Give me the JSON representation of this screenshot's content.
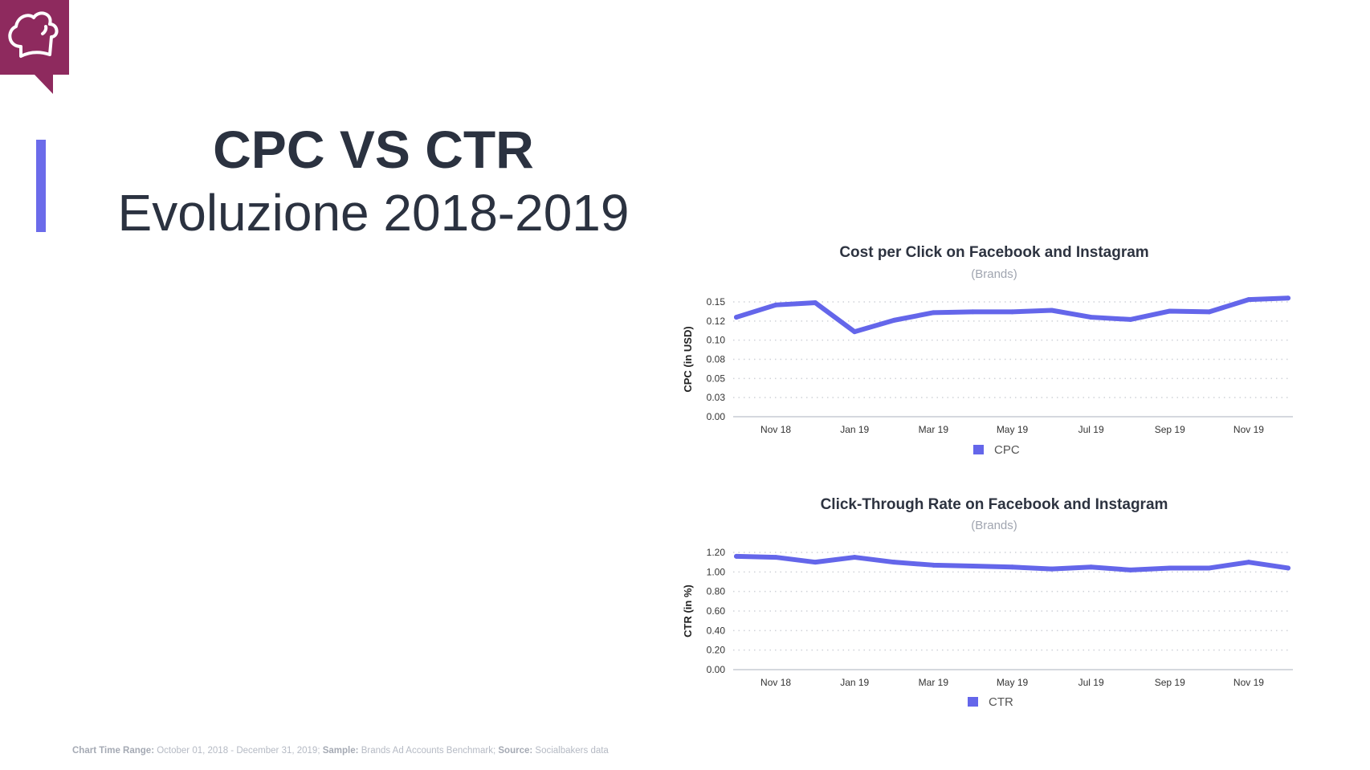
{
  "header": {
    "title": "CPC VS CTR",
    "subtitle": "Evoluzione 2018-2019"
  },
  "logo": {
    "icon": "chef-hat-icon",
    "color": "#8e2a5e"
  },
  "accent_color": "#6b6bea",
  "footer": {
    "range_label": "Chart Time Range:",
    "range_value": "October  01, 2018 - December 31, 2019;",
    "sample_label": "Sample:",
    "sample_value": "Brands Ad Accounts Benchmark;",
    "source_label": "Source:",
    "source_value": "Socialbakers data"
  },
  "chart_data": [
    {
      "type": "line",
      "title": "Cost per Click on Facebook and Instagram",
      "subtitle": "(Brands)",
      "ylabel": "CPC (in USD)",
      "ylim": [
        0,
        0.15
      ],
      "yticks": [
        0,
        0.025,
        0.05,
        0.075,
        0.1,
        0.125,
        0.15
      ],
      "ytick_labels": [
        "0.00",
        "0.03",
        "0.05",
        "0.08",
        "0.10",
        "0.12",
        "0.15"
      ],
      "x": [
        "Oct 18",
        "Nov 18",
        "Dec 18",
        "Jan 19",
        "Feb 19",
        "Mar 19",
        "Apr 19",
        "May 19",
        "Jun 19",
        "Jul 19",
        "Aug 19",
        "Sep 19",
        "Oct 19",
        "Nov 19",
        "Dec 19"
      ],
      "xtick_labels": [
        "Nov 18",
        "Jan 19",
        "Mar 19",
        "May 19",
        "Jul 19",
        "Sep 19",
        "Nov 19"
      ],
      "grid": true,
      "legend": "bottom",
      "series": [
        {
          "name": "CPC",
          "color": "#6466ea",
          "values": [
            0.13,
            0.146,
            0.149,
            0.111,
            0.126,
            0.136,
            0.137,
            0.137,
            0.139,
            0.13,
            0.127,
            0.138,
            0.137,
            0.153,
            0.155
          ]
        }
      ]
    },
    {
      "type": "line",
      "title": "Click-Through Rate on Facebook and Instagram",
      "subtitle": "(Brands)",
      "ylabel": "CTR (in %)",
      "ylim": [
        0,
        1.2
      ],
      "yticks": [
        0,
        0.2,
        0.4,
        0.6,
        0.8,
        1.0,
        1.2
      ],
      "ytick_labels": [
        "0.00",
        "0.20",
        "0.40",
        "0.60",
        "0.80",
        "1.00",
        "1.20"
      ],
      "x": [
        "Oct 18",
        "Nov 18",
        "Dec 18",
        "Jan 19",
        "Feb 19",
        "Mar 19",
        "Apr 19",
        "May 19",
        "Jun 19",
        "Jul 19",
        "Aug 19",
        "Sep 19",
        "Oct 19",
        "Nov 19",
        "Dec 19"
      ],
      "xtick_labels": [
        "Nov 18",
        "Jan 19",
        "Mar 19",
        "May 19",
        "Jul 19",
        "Sep 19",
        "Nov 19"
      ],
      "grid": true,
      "legend": "bottom",
      "series": [
        {
          "name": "CTR",
          "color": "#6466ea",
          "values": [
            1.16,
            1.15,
            1.1,
            1.15,
            1.1,
            1.07,
            1.06,
            1.05,
            1.03,
            1.05,
            1.02,
            1.04,
            1.04,
            1.1,
            1.04
          ]
        }
      ]
    }
  ]
}
